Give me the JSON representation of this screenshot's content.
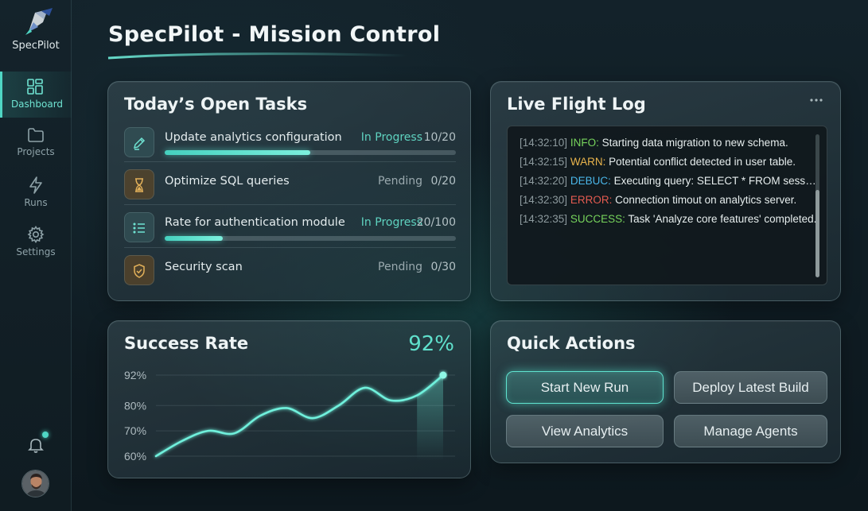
{
  "app": {
    "name": "SpecPilot"
  },
  "page": {
    "title": "SpecPilot - Mission Control"
  },
  "sidebar": {
    "items": [
      {
        "label": "Dashboard",
        "icon": "dashboard-icon",
        "active": true
      },
      {
        "label": "Projects",
        "icon": "folder-icon",
        "active": false
      },
      {
        "label": "Runs",
        "icon": "lightning-icon",
        "active": false
      },
      {
        "label": "Settings",
        "icon": "gear-icon",
        "active": false
      }
    ],
    "has_notification": true
  },
  "tasks": {
    "title": "Today’s Open Tasks",
    "items": [
      {
        "name": "Update analytics configuration",
        "status": "In Progress",
        "count": "10/20",
        "progress": 0.5,
        "icon": "pencil-icon"
      },
      {
        "name": "Optimize SQL queries",
        "status": "Pending",
        "count": "0/20",
        "icon": "hourglass-icon"
      },
      {
        "name": "Rate for authentication module",
        "status": "In Progress",
        "count": "20/100",
        "progress": 0.2,
        "icon": "list-icon"
      },
      {
        "name": "Security scan",
        "status": "Pending",
        "count": "0/30",
        "icon": "shield-check-icon"
      }
    ]
  },
  "log": {
    "title": "Live Flight Log",
    "lines": [
      {
        "time": "[14:32:10]",
        "level": "INFO:",
        "message": " Starting data migration to new schema."
      },
      {
        "time": "[14:32:15]",
        "level": "WARN:",
        "message": " Potential conflict detected in user table."
      },
      {
        "time": "[14:32:20]",
        "level": "DEBUC:",
        "message": " Executing query: SELECT * FROM sessions..."
      },
      {
        "time": "[14:32:30]",
        "level": "ERROR:",
        "message": " Connection timout on analytics server."
      },
      {
        "time": "[14:32:35]",
        "level": "SUCCESS:",
        "message": " Task 'Analyze core features' completed."
      }
    ]
  },
  "success": {
    "title": "Success Rate",
    "value": "92%"
  },
  "chart_data": {
    "type": "line",
    "title": "Success Rate",
    "y_ticks": [
      "92%",
      "80%",
      "70%",
      "60%"
    ],
    "ylim": [
      60,
      92
    ],
    "x": [
      0,
      1,
      2,
      3,
      4,
      5,
      6,
      7,
      8,
      9,
      10,
      11
    ],
    "values": [
      60,
      66,
      70,
      69,
      76,
      79,
      75,
      80,
      87,
      82,
      84,
      92
    ],
    "area_last_segment": true,
    "grid": true
  },
  "quick_actions": {
    "title": "Quick Actions",
    "buttons": [
      {
        "label": "Start New Run",
        "primary": true
      },
      {
        "label": "Deploy Latest Build",
        "primary": false
      },
      {
        "label": "View Analytics",
        "primary": false
      },
      {
        "label": "Manage Agents",
        "primary": false
      }
    ]
  },
  "colors": {
    "accent": "#4fd6c4",
    "info": "#77d45c",
    "warn": "#e9b44c",
    "debug": "#4ab6e8",
    "error": "#e35b50"
  }
}
